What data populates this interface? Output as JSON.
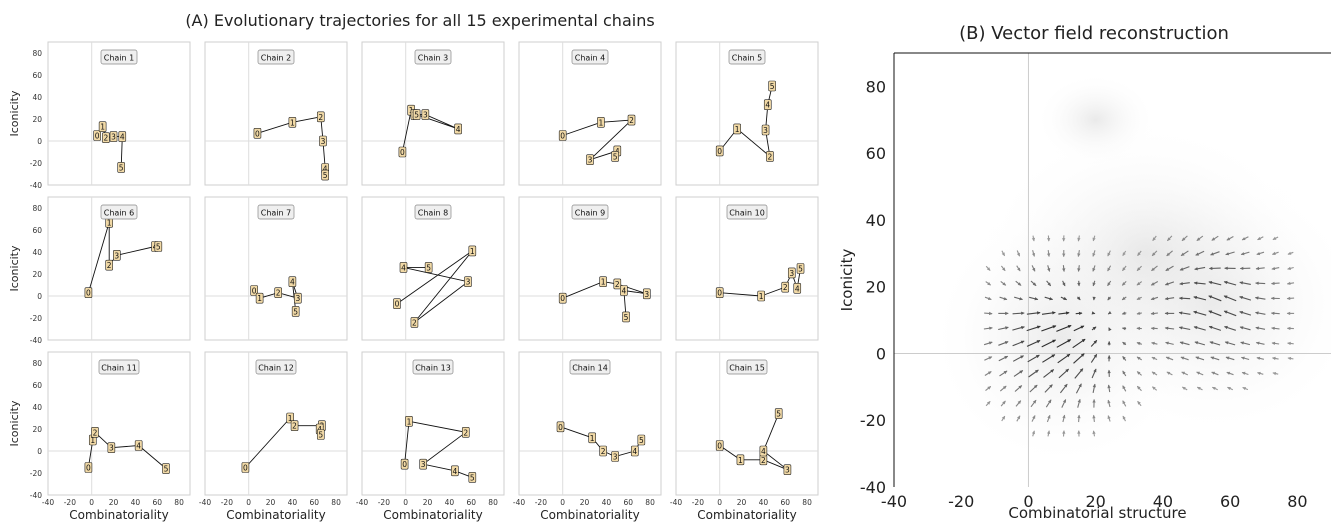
{
  "figure": {
    "left_title": "(A) Evolutionary trajectories for all 15 experimental chains",
    "right_title": "(B) Vector field reconstruction"
  },
  "chart_data": [
    {
      "type": "line",
      "panel": "A",
      "title": "(A) Evolutionary trajectories for all 15 experimental chains",
      "xlabel": "Combinatoriality",
      "ylabel": "Iconicity",
      "xlim": [
        -40,
        90
      ],
      "ylim": [
        -40,
        90
      ],
      "xticks": [
        -40,
        -20,
        0,
        20,
        40,
        60,
        80
      ],
      "yticks": [
        -40,
        -20,
        0,
        20,
        40,
        60,
        80
      ],
      "grid": false,
      "series": [
        {
          "name": "Chain 1",
          "points": [
            [
              5,
              5
            ],
            [
              10,
              13
            ],
            [
              13,
              3
            ],
            [
              20,
              4
            ],
            [
              28,
              4
            ],
            [
              27,
              -24
            ]
          ]
        },
        {
          "name": "Chain 2",
          "points": [
            [
              8,
              7
            ],
            [
              40,
              17
            ],
            [
              66,
              22
            ],
            [
              68,
              0
            ],
            [
              70,
              -25
            ],
            [
              70,
              -31
            ]
          ]
        },
        {
          "name": "Chain 3",
          "points": [
            [
              -3,
              -10
            ],
            [
              5,
              28
            ],
            [
              8,
              24
            ],
            [
              18,
              24
            ],
            [
              48,
              11
            ],
            [
              10,
              24
            ]
          ]
        },
        {
          "name": "Chain 4",
          "points": [
            [
              0,
              5
            ],
            [
              35,
              17
            ],
            [
              63,
              19
            ],
            [
              25,
              -17
            ],
            [
              50,
              -9
            ],
            [
              48,
              -14
            ]
          ]
        },
        {
          "name": "Chain 5",
          "points": [
            [
              0,
              -9
            ],
            [
              16,
              11
            ],
            [
              46,
              -14
            ],
            [
              42,
              10
            ],
            [
              44,
              33
            ],
            [
              48,
              50
            ]
          ]
        },
        {
          "name": "Chain 6",
          "points": [
            [
              -3,
              3
            ],
            [
              16,
              67
            ],
            [
              16,
              28
            ],
            [
              23,
              37
            ],
            [
              58,
              45
            ],
            [
              61,
              45
            ]
          ]
        },
        {
          "name": "Chain 7",
          "points": [
            [
              5,
              5
            ],
            [
              10,
              -2
            ],
            [
              27,
              3
            ],
            [
              45,
              -2
            ],
            [
              40,
              13
            ],
            [
              43,
              -14
            ]
          ]
        },
        {
          "name": "Chain 8",
          "points": [
            [
              -8,
              -7
            ],
            [
              61,
              41
            ],
            [
              8,
              -24
            ],
            [
              57,
              13
            ],
            [
              -2,
              26
            ],
            [
              21,
              26
            ]
          ]
        },
        {
          "name": "Chain 9",
          "points": [
            [
              0,
              -2
            ],
            [
              37,
              13
            ],
            [
              50,
              11
            ],
            [
              77,
              2
            ],
            [
              56,
              5
            ],
            [
              58,
              -19
            ]
          ]
        },
        {
          "name": "Chain 10",
          "points": [
            [
              0,
              3
            ],
            [
              38,
              0
            ],
            [
              60,
              8
            ],
            [
              66,
              21
            ],
            [
              71,
              7
            ],
            [
              74,
              25
            ]
          ]
        },
        {
          "name": "Chain 11",
          "points": [
            [
              -3,
              -15
            ],
            [
              1,
              10
            ],
            [
              3,
              17
            ],
            [
              18,
              3
            ],
            [
              43,
              5
            ],
            [
              68,
              -16
            ]
          ]
        },
        {
          "name": "Chain 12",
          "points": [
            [
              -3,
              -15
            ],
            [
              38,
              30
            ],
            [
              42,
              23
            ],
            [
              67,
              23
            ],
            [
              65,
              20
            ],
            [
              66,
              15
            ]
          ]
        },
        {
          "name": "Chain 13",
          "points": [
            [
              -1,
              -12
            ],
            [
              3,
              27
            ],
            [
              55,
              17
            ],
            [
              16,
              -12
            ],
            [
              45,
              -18
            ],
            [
              61,
              -24
            ]
          ]
        },
        {
          "name": "Chain 14",
          "points": [
            [
              -2,
              22
            ],
            [
              27,
              12
            ],
            [
              37,
              0
            ],
            [
              48,
              -5
            ],
            [
              66,
              0
            ],
            [
              72,
              10
            ]
          ]
        },
        {
          "name": "Chain 15",
          "points": [
            [
              0,
              5
            ],
            [
              19,
              -8
            ],
            [
              40,
              -8
            ],
            [
              62,
              -17
            ],
            [
              40,
              0
            ],
            [
              54,
              34
            ]
          ]
        }
      ]
    },
    {
      "type": "vector_field",
      "panel": "B",
      "title": "(B) Vector field reconstruction",
      "xlabel": "Combinatorial structure",
      "ylabel": "Iconicity",
      "xlim": [
        -40,
        90
      ],
      "ylim": [
        -40,
        90
      ],
      "xticks": [
        -40,
        -20,
        0,
        20,
        40,
        60,
        80
      ],
      "yticks": [
        -40,
        -20,
        0,
        20,
        40,
        60,
        80
      ],
      "grid": false
    }
  ]
}
